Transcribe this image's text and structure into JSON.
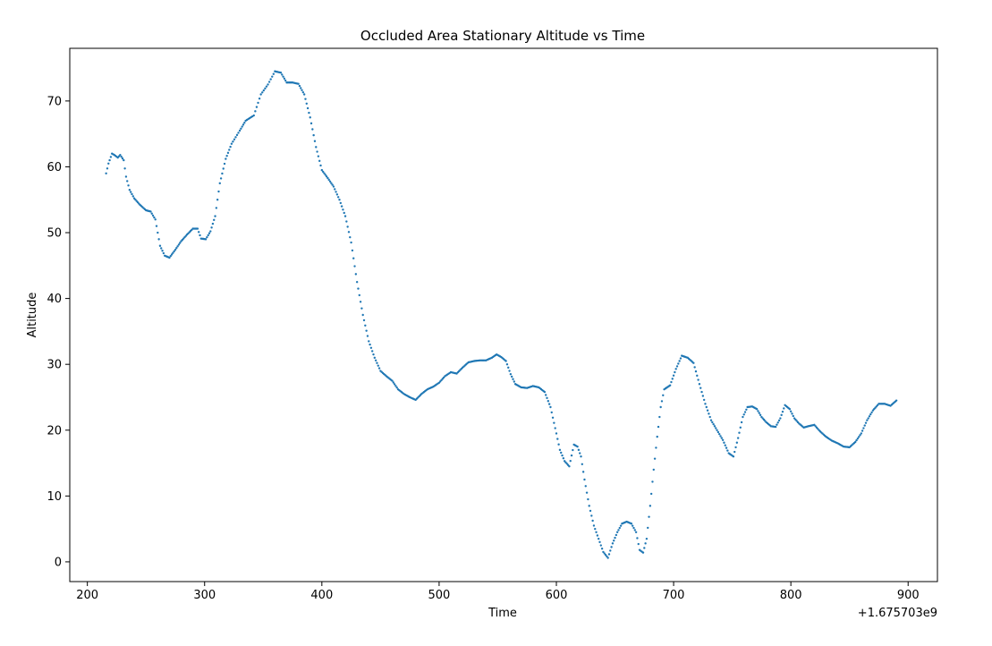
{
  "chart_data": {
    "type": "scatter",
    "title": "Occluded Area Stationary Altitude vs Time",
    "xlabel": "Time",
    "ylabel": "Altitude",
    "x_offset_label": "+1.675703e9",
    "xlim": [
      185,
      925
    ],
    "ylim": [
      -3,
      78
    ],
    "x_ticks": [
      200,
      300,
      400,
      500,
      600,
      700,
      800,
      900
    ],
    "y_ticks": [
      0,
      10,
      20,
      30,
      40,
      50,
      60,
      70
    ],
    "grid": false,
    "color": "#1f77b4",
    "anchor_points": [
      [
        216,
        59
      ],
      [
        218,
        60.5
      ],
      [
        221,
        62
      ],
      [
        223,
        61.8
      ],
      [
        226,
        61.4
      ],
      [
        228,
        61.8
      ],
      [
        231,
        61.0
      ],
      [
        233,
        58.5
      ],
      [
        236,
        56.5
      ],
      [
        240,
        55.2
      ],
      [
        245,
        54.2
      ],
      [
        250,
        53.4
      ],
      [
        254,
        53.2
      ],
      [
        258,
        52.0
      ],
      [
        262,
        48.0
      ],
      [
        266,
        46.5
      ],
      [
        270,
        46.2
      ],
      [
        275,
        47.4
      ],
      [
        280,
        48.7
      ],
      [
        285,
        49.7
      ],
      [
        290,
        50.6
      ],
      [
        294,
        50.6
      ],
      [
        297,
        49.1
      ],
      [
        301,
        49.0
      ],
      [
        305,
        50.2
      ],
      [
        309,
        52.5
      ],
      [
        313,
        57.5
      ],
      [
        318,
        61.2
      ],
      [
        323,
        63.5
      ],
      [
        330,
        65.5
      ],
      [
        335,
        67.0
      ],
      [
        342,
        67.8
      ],
      [
        348,
        71.0
      ],
      [
        354,
        72.5
      ],
      [
        360,
        74.5
      ],
      [
        365,
        74.3
      ],
      [
        370,
        72.8
      ],
      [
        375,
        72.8
      ],
      [
        380,
        72.6
      ],
      [
        385,
        71.0
      ],
      [
        390,
        67.5
      ],
      [
        395,
        63.0
      ],
      [
        400,
        59.5
      ],
      [
        405,
        58.3
      ],
      [
        410,
        57.0
      ],
      [
        415,
        55.0
      ],
      [
        420,
        52.5
      ],
      [
        425,
        48.5
      ],
      [
        430,
        42.5
      ],
      [
        435,
        37.5
      ],
      [
        440,
        33.5
      ],
      [
        445,
        31.0
      ],
      [
        450,
        29.0
      ],
      [
        455,
        28.2
      ],
      [
        460,
        27.5
      ],
      [
        465,
        26.2
      ],
      [
        470,
        25.5
      ],
      [
        475,
        25.0
      ],
      [
        480,
        24.6
      ],
      [
        485,
        25.5
      ],
      [
        490,
        26.2
      ],
      [
        495,
        26.6
      ],
      [
        500,
        27.2
      ],
      [
        505,
        28.2
      ],
      [
        510,
        28.8
      ],
      [
        515,
        28.6
      ],
      [
        520,
        29.5
      ],
      [
        525,
        30.3
      ],
      [
        530,
        30.5
      ],
      [
        535,
        30.6
      ],
      [
        540,
        30.6
      ],
      [
        545,
        31.0
      ],
      [
        549,
        31.5
      ],
      [
        553,
        31.1
      ],
      [
        557,
        30.5
      ],
      [
        561,
        28.5
      ],
      [
        565,
        27.0
      ],
      [
        570,
        26.5
      ],
      [
        575,
        26.4
      ],
      [
        580,
        26.7
      ],
      [
        585,
        26.5
      ],
      [
        590,
        25.8
      ],
      [
        595,
        23.5
      ],
      [
        600,
        19.5
      ],
      [
        603,
        17.0
      ],
      [
        607,
        15.3
      ],
      [
        611,
        14.5
      ],
      [
        615,
        17.8
      ],
      [
        618,
        17.5
      ],
      [
        621,
        16.0
      ],
      [
        624,
        12.5
      ],
      [
        628,
        8.5
      ],
      [
        632,
        5.5
      ],
      [
        636,
        3.5
      ],
      [
        640,
        1.5
      ],
      [
        644,
        0.6
      ],
      [
        648,
        2.8
      ],
      [
        652,
        4.5
      ],
      [
        656,
        5.8
      ],
      [
        660,
        6.1
      ],
      [
        664,
        5.8
      ],
      [
        668,
        4.5
      ],
      [
        671,
        1.8
      ],
      [
        674,
        1.4
      ],
      [
        677,
        3.5
      ],
      [
        680,
        8.5
      ],
      [
        683,
        14.0
      ],
      [
        686,
        19.0
      ],
      [
        689,
        23.5
      ],
      [
        692,
        26.2
      ],
      [
        697,
        26.8
      ],
      [
        702,
        29.3
      ],
      [
        707,
        31.3
      ],
      [
        712,
        31.0
      ],
      [
        717,
        30.2
      ],
      [
        722,
        27.0
      ],
      [
        727,
        24.0
      ],
      [
        732,
        21.5
      ],
      [
        737,
        20.0
      ],
      [
        742,
        18.5
      ],
      [
        747,
        16.5
      ],
      [
        751,
        16.0
      ],
      [
        755,
        18.8
      ],
      [
        759,
        22.0
      ],
      [
        763,
        23.5
      ],
      [
        767,
        23.6
      ],
      [
        771,
        23.2
      ],
      [
        775,
        22.0
      ],
      [
        779,
        21.2
      ],
      [
        783,
        20.6
      ],
      [
        787,
        20.5
      ],
      [
        791,
        21.8
      ],
      [
        795,
        23.8
      ],
      [
        799,
        23.2
      ],
      [
        803,
        21.8
      ],
      [
        807,
        21.0
      ],
      [
        811,
        20.4
      ],
      [
        815,
        20.6
      ],
      [
        820,
        20.8
      ],
      [
        825,
        19.8
      ],
      [
        830,
        19.0
      ],
      [
        835,
        18.4
      ],
      [
        840,
        18.0
      ],
      [
        845,
        17.5
      ],
      [
        850,
        17.4
      ],
      [
        855,
        18.2
      ],
      [
        860,
        19.5
      ],
      [
        865,
        21.5
      ],
      [
        870,
        23.0
      ],
      [
        875,
        24.0
      ],
      [
        880,
        24.0
      ],
      [
        885,
        23.7
      ],
      [
        890,
        24.5
      ]
    ]
  }
}
